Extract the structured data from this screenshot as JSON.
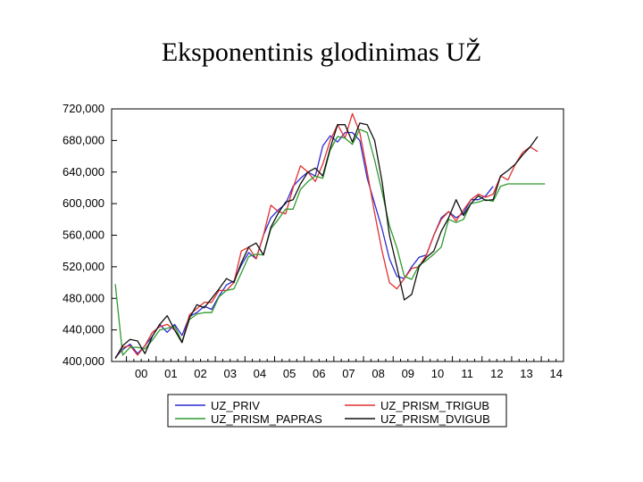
{
  "slide": {
    "title": "Eksponentinis glodinimas UŽ"
  },
  "chart_data": {
    "type": "line",
    "title": "",
    "xlabel": "",
    "ylabel": "",
    "x_tick_labels": [
      "00",
      "01",
      "02",
      "03",
      "04",
      "05",
      "06",
      "07",
      "08",
      "09",
      "10",
      "11",
      "12",
      "13",
      "14"
    ],
    "x_tick_years": [
      2000,
      2001,
      2002,
      2003,
      2004,
      2005,
      2006,
      2007,
      2008,
      2009,
      2010,
      2011,
      2012,
      2013,
      2014
    ],
    "x_range": [
      1999.5,
      2014.75
    ],
    "y_tick_labels": [
      "400,000",
      "440,000",
      "480,000",
      "520,000",
      "560,000",
      "600,000",
      "640,000",
      "680,000",
      "720,000"
    ],
    "y_tick_values": [
      400000,
      440000,
      480000,
      520000,
      560000,
      600000,
      640000,
      680000,
      720000
    ],
    "ylim": [
      400000,
      720000
    ],
    "grid": false,
    "legend_position": "bottom",
    "x": [
      1999.625,
      1999.875,
      2000.125,
      2000.375,
      2000.625,
      2000.875,
      2001.125,
      2001.375,
      2001.625,
      2001.875,
      2002.125,
      2002.375,
      2002.625,
      2002.875,
      2003.125,
      2003.375,
      2003.625,
      2003.875,
      2004.125,
      2004.375,
      2004.625,
      2004.875,
      2005.125,
      2005.375,
      2005.625,
      2005.875,
      2006.125,
      2006.375,
      2006.625,
      2006.875,
      2007.125,
      2007.375,
      2007.625,
      2007.875,
      2008.125,
      2008.375,
      2008.625,
      2008.875,
      2009.125,
      2009.375,
      2009.625,
      2009.875,
      2010.125,
      2010.375,
      2010.625,
      2010.875,
      2011.125,
      2011.375,
      2011.625,
      2011.875,
      2012.125,
      2012.375,
      2012.625,
      2012.875,
      2013.125,
      2013.375,
      2013.625,
      2013.875,
      2014.125,
      2014.375,
      2014.625
    ],
    "series": [
      {
        "name": "UZ_PRIV",
        "color": "#2b2bd0",
        "values": [
          405000,
          415000,
          422000,
          410000,
          420000,
          432000,
          447000,
          437000,
          447000,
          433000,
          457000,
          462000,
          470000,
          466000,
          483000,
          497000,
          502000,
          522000,
          538000,
          530000,
          560000,
          582000,
          592000,
          600000,
          622000,
          632000,
          640000,
          635000,
          673000,
          686000,
          678000,
          690000,
          690000,
          680000,
          632000,
          600000,
          568000,
          530000,
          508000,
          505000,
          520000,
          532000,
          535000,
          560000,
          582000,
          590000,
          582000,
          588000,
          605000,
          605000,
          610000,
          622000,
          null,
          null,
          null,
          null,
          null,
          null,
          null,
          null,
          null
        ]
      },
      {
        "name": "UZ_PRISM_TRIGUB",
        "color": "#e03030",
        "values": [
          404000,
          418000,
          420000,
          408000,
          420000,
          437000,
          444000,
          447000,
          440000,
          424000,
          459000,
          467000,
          475000,
          475000,
          490000,
          490000,
          500000,
          540000,
          545000,
          530000,
          560000,
          598000,
          590000,
          587000,
          620000,
          648000,
          640000,
          628000,
          650000,
          680000,
          700000,
          683000,
          714000,
          690000,
          640000,
          588000,
          540000,
          500000,
          492000,
          505000,
          518000,
          520000,
          535000,
          560000,
          580000,
          590000,
          578000,
          592000,
          605000,
          612000,
          608000,
          612000,
          635000,
          630000,
          650000,
          665000,
          672000,
          666000,
          null,
          null,
          null
        ]
      },
      {
        "name": "UZ_PRISM_PAPRAS",
        "color": "#2e9a2e",
        "values": [
          498000,
          408000,
          418000,
          418000,
          416000,
          427000,
          440000,
          442000,
          445000,
          425000,
          453000,
          460000,
          462000,
          462000,
          482000,
          490000,
          492000,
          512000,
          533000,
          536000,
          535000,
          568000,
          580000,
          593000,
          593000,
          618000,
          628000,
          635000,
          632000,
          668000,
          685000,
          683000,
          675000,
          694000,
          690000,
          655000,
          615000,
          572000,
          544000,
          508000,
          504000,
          522000,
          528000,
          536000,
          545000,
          580000,
          576000,
          580000,
          600000,
          602000,
          605000,
          603000,
          622000,
          625000,
          625000,
          625000,
          625000,
          625000,
          625000,
          null,
          null
        ]
      },
      {
        "name": "UZ_PRISM_DVIGUB",
        "color": "#111111",
        "values": [
          404000,
          420000,
          428000,
          426000,
          410000,
          432000,
          447000,
          458000,
          440000,
          424000,
          455000,
          472000,
          468000,
          480000,
          492000,
          505000,
          500000,
          525000,
          545000,
          550000,
          535000,
          570000,
          588000,
          602000,
          605000,
          625000,
          640000,
          645000,
          635000,
          670000,
          700000,
          700000,
          678000,
          702000,
          700000,
          680000,
          628000,
          560000,
          520000,
          478000,
          485000,
          520000,
          532000,
          540000,
          565000,
          582000,
          605000,
          585000,
          600000,
          610000,
          604000,
          605000,
          635000,
          642000,
          650000,
          662000,
          672000,
          685000,
          null,
          null,
          null
        ]
      }
    ]
  }
}
